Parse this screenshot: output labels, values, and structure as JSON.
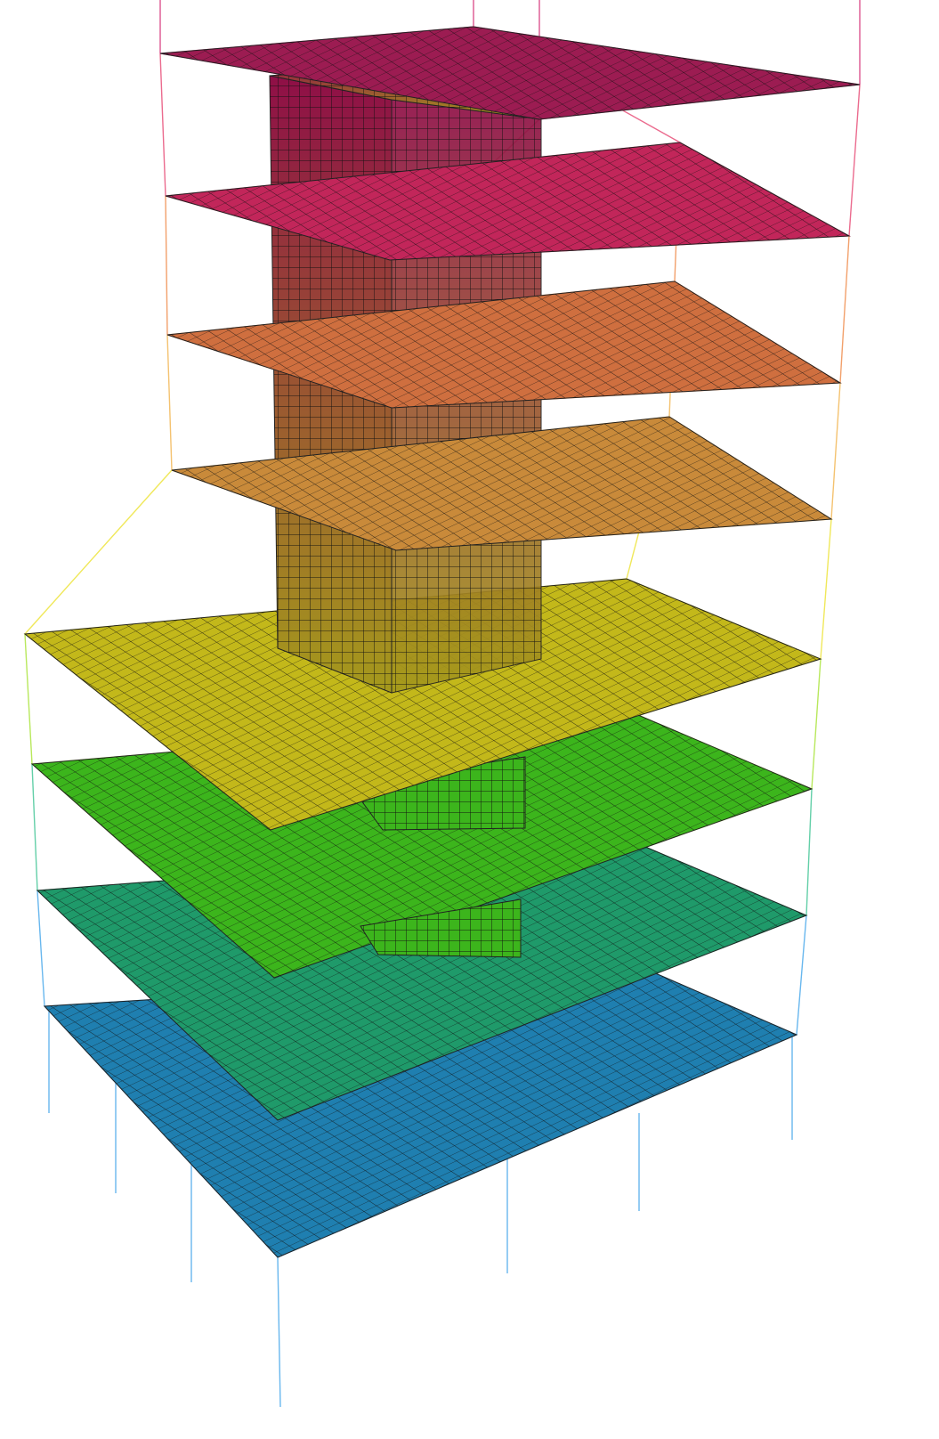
{
  "model": {
    "floor_count": 8,
    "floor_colors": [
      "#1f7fb0",
      "#1f9a6a",
      "#3cb51c",
      "#c3b81a",
      "#c98a3a",
      "#cf6f3f",
      "#c2265a",
      "#9c1c52"
    ],
    "column_colors": [
      "#68b7ee",
      "#63cfa8",
      "#b8e85c",
      "#f0e85a",
      "#f4c270",
      "#f2a06b",
      "#eb6b8e",
      "#dd5590"
    ],
    "core_color_top": "#8f0f47",
    "core_color_bottom": "#a59a1c",
    "mesh_color": "#1a1a1a",
    "background": "#ffffff"
  }
}
